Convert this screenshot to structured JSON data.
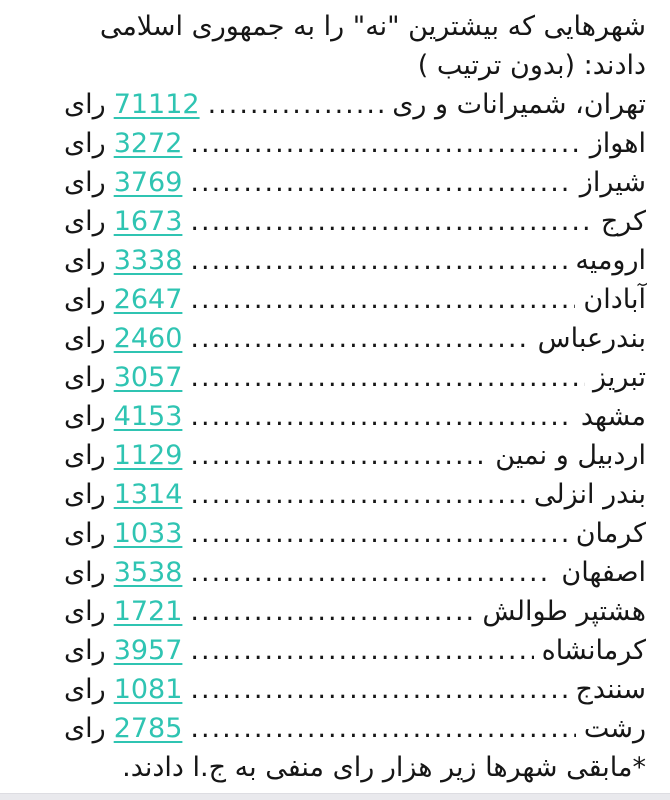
{
  "page": {
    "header_line1": "شهرهایی که بیشترین \"نه\" را به جمهوری اسلامی",
    "header_line2": "دادند: (بدون ترتیب )",
    "votes_suffix": "رای",
    "footer": "*مابقی شهرها زیر هزار رای منفی به ج.ا دادند.",
    "accent_color": "#2fc4b2",
    "text_color": "#161616",
    "background_color": "#ffffff",
    "cities": [
      {
        "name": "تهران، شمیرانات و ری",
        "votes": "71112"
      },
      {
        "name": "اهواز",
        "votes": "3272"
      },
      {
        "name": "شیراز",
        "votes": "3769"
      },
      {
        "name": "کرج",
        "votes": "1673"
      },
      {
        "name": "ارومیه",
        "votes": "3338"
      },
      {
        "name": "آبادان",
        "votes": "2647"
      },
      {
        "name": "بندرعباس",
        "votes": "2460"
      },
      {
        "name": "تبریز",
        "votes": "3057"
      },
      {
        "name": "مشهد",
        "votes": "4153"
      },
      {
        "name": "اردبیل و نمین",
        "votes": "1129"
      },
      {
        "name": "بندر انزلی",
        "votes": "1314"
      },
      {
        "name": "کرمان",
        "votes": "1033"
      },
      {
        "name": "اصفهان",
        "votes": "3538"
      },
      {
        "name": "هشتپر طوالش",
        "votes": "1721"
      },
      {
        "name": "کرمانشاه",
        "votes": "3957"
      },
      {
        "name": "سنندج",
        "votes": "1081"
      },
      {
        "name": "رشت",
        "votes": "2785"
      }
    ]
  }
}
